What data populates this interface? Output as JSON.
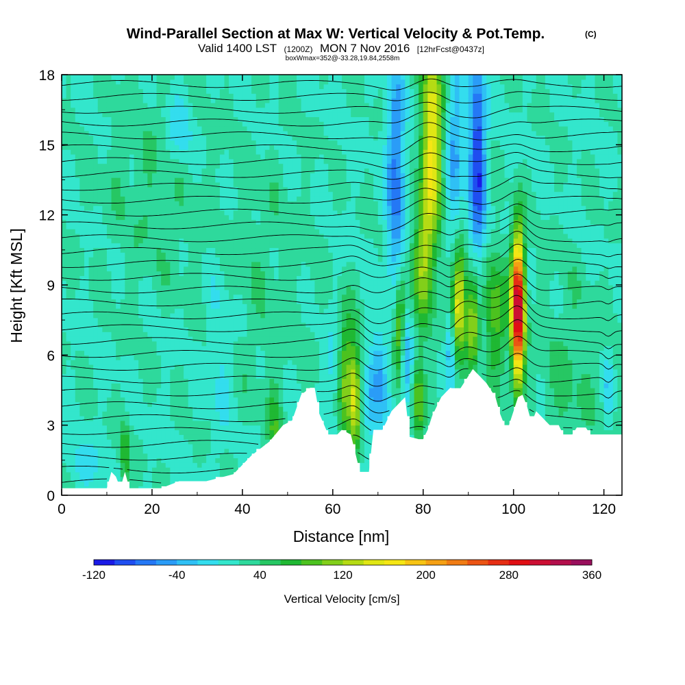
{
  "chart_data": {
    "type": "heatmap",
    "title": "Wind-Parallel Section at Max W: Vertical Velocity & Pot.Temp.",
    "title_mark": "(C)",
    "subtitle_main": "Valid 1400 LST",
    "subtitle_z": "(1200Z)",
    "subtitle_date": "MON 7 Nov 2016",
    "subtitle_fcst": "[12hrFcst@0437z]",
    "box_note": "boxWmax=352@-33.28,19.84,2558m",
    "xlabel": "Distance [nm]",
    "ylabel": "Height [Kft MSL]",
    "xlim": [
      0,
      124
    ],
    "ylim": [
      0,
      18
    ],
    "xticks": [
      0,
      20,
      40,
      60,
      80,
      100,
      120
    ],
    "yticks": [
      0,
      3,
      6,
      9,
      12,
      15,
      18
    ],
    "colorbar": {
      "label": "Vertical Velocity [cm/s]",
      "min": -120,
      "max": 360,
      "step": 20,
      "tick_values": [
        -120,
        -40,
        40,
        120,
        200,
        280,
        360
      ],
      "colors": [
        "#1a1ae6",
        "#1f4ef0",
        "#2478f5",
        "#2a9cf7",
        "#2fc0f5",
        "#33ddee",
        "#33e6cc",
        "#2ed99c",
        "#26c763",
        "#1fb833",
        "#4cc21f",
        "#82cf1a",
        "#b5db14",
        "#e0e614",
        "#f5e614",
        "#f7c414",
        "#f5a014",
        "#f07c14",
        "#eb5414",
        "#e62e14",
        "#e00f14",
        "#cc0f33",
        "#b30f4c",
        "#990f5c"
      ]
    },
    "terrain_profile": [
      [
        0,
        0.3
      ],
      [
        10,
        0.3
      ],
      [
        11,
        1.0
      ],
      [
        12,
        0.8
      ],
      [
        13,
        0.3
      ],
      [
        14,
        1.0
      ],
      [
        15,
        0.3
      ],
      [
        22,
        0.3
      ],
      [
        26,
        0.6
      ],
      [
        32,
        0.6
      ],
      [
        38,
        0.9
      ],
      [
        42,
        1.7
      ],
      [
        46,
        2.3
      ],
      [
        49,
        3.0
      ],
      [
        51,
        3.2
      ],
      [
        53,
        4.3
      ],
      [
        55,
        4.6
      ],
      [
        56,
        4.6
      ],
      [
        57,
        3.5
      ],
      [
        59,
        2.6
      ],
      [
        61,
        2.6
      ],
      [
        62,
        2.8
      ],
      [
        64,
        2.6
      ],
      [
        66,
        1.0
      ],
      [
        68,
        1.0
      ],
      [
        69,
        2.8
      ],
      [
        71,
        2.8
      ],
      [
        73,
        3.6
      ],
      [
        76,
        4.2
      ],
      [
        77,
        2.5
      ],
      [
        79,
        2.4
      ],
      [
        80,
        2.4
      ],
      [
        81,
        2.8
      ],
      [
        82,
        3.4
      ],
      [
        84,
        4.2
      ],
      [
        86,
        4.6
      ],
      [
        88,
        4.5
      ],
      [
        90,
        5.1
      ],
      [
        91,
        5.4
      ],
      [
        92,
        5.2
      ],
      [
        94,
        4.8
      ],
      [
        96,
        4.2
      ],
      [
        97,
        3.5
      ],
      [
        98,
        3.0
      ],
      [
        99,
        3.0
      ],
      [
        100,
        3.6
      ],
      [
        101,
        4.2
      ],
      [
        102,
        4.3
      ],
      [
        103,
        3.8
      ],
      [
        104,
        3.1
      ],
      [
        105,
        3.6
      ],
      [
        106,
        3.4
      ],
      [
        108,
        3.0
      ],
      [
        110,
        3.0
      ],
      [
        111,
        2.6
      ],
      [
        113,
        2.6
      ],
      [
        114,
        2.9
      ],
      [
        116,
        2.9
      ],
      [
        117,
        2.6
      ],
      [
        124,
        2.6
      ]
    ],
    "updrafts": [
      {
        "x": 14,
        "y": 1.8,
        "sx": 0.8,
        "sy": 1.0,
        "w": 60
      },
      {
        "x": 47,
        "y": 2.5,
        "sx": 1.0,
        "sy": 1.4,
        "w": 55
      },
      {
        "x": 63,
        "y": 5.0,
        "sx": 1.2,
        "sy": 2.0,
        "w": 90
      },
      {
        "x": 65,
        "y": 4.2,
        "sx": 0.8,
        "sy": 1.6,
        "w": 120
      },
      {
        "x": 75,
        "y": 7.2,
        "sx": 1.0,
        "sy": 1.6,
        "w": 130
      },
      {
        "x": 79,
        "y": 4.0,
        "sx": 0.9,
        "sy": 1.2,
        "w": 90
      },
      {
        "x": 82,
        "y": 15.5,
        "sx": 1.6,
        "sy": 3.2,
        "w": 150
      },
      {
        "x": 80,
        "y": 10.0,
        "sx": 1.6,
        "sy": 2.2,
        "w": 90
      },
      {
        "x": 88,
        "y": 8.4,
        "sx": 1.1,
        "sy": 1.6,
        "w": 150
      },
      {
        "x": 91,
        "y": 7.5,
        "sx": 0.9,
        "sy": 1.5,
        "w": 110
      },
      {
        "x": 96,
        "y": 7.8,
        "sx": 1.8,
        "sy": 1.8,
        "w": 80
      },
      {
        "x": 101,
        "y": 8.0,
        "sx": 1.0,
        "sy": 2.2,
        "w": 320
      },
      {
        "x": 112,
        "y": 5.0,
        "sx": 5,
        "sy": 3,
        "w": 25
      },
      {
        "x": 20,
        "y": 13,
        "sx": 8,
        "sy": 3,
        "w": 20
      },
      {
        "x": 45,
        "y": 9,
        "sx": 7,
        "sy": 4,
        "w": 15
      }
    ],
    "downdrafts": [
      {
        "x": 76,
        "y": 6.0,
        "sx": 1.0,
        "sy": 1.4,
        "w": -100
      },
      {
        "x": 74,
        "y": 13.5,
        "sx": 1.4,
        "sy": 3.5,
        "w": -90
      },
      {
        "x": 87,
        "y": 15.0,
        "sx": 1.3,
        "sy": 3.0,
        "w": -60
      },
      {
        "x": 92,
        "y": 14.5,
        "sx": 1.3,
        "sy": 3.2,
        "w": -120
      },
      {
        "x": 70,
        "y": 5.0,
        "sx": 1.3,
        "sy": 1.6,
        "w": -60
      },
      {
        "x": 68,
        "y": 4.0,
        "sx": 0.8,
        "sy": 1.2,
        "w": -40
      },
      {
        "x": 60,
        "y": 5.0,
        "sx": 1.2,
        "sy": 1.5,
        "w": -30
      },
      {
        "x": 86,
        "y": 6.5,
        "sx": 0.6,
        "sy": 1.0,
        "w": -60
      },
      {
        "x": 121,
        "y": 4.5,
        "sx": 0.4,
        "sy": 1.0,
        "w": -60
      },
      {
        "x": 26,
        "y": 15.5,
        "sx": 2,
        "sy": 1.2,
        "w": -40
      },
      {
        "x": 35,
        "y": 6.0,
        "sx": 2,
        "sy": 2.5,
        "w": -25
      },
      {
        "x": 5,
        "y": 1.2,
        "sx": 3,
        "sy": 0.8,
        "w": -25
      }
    ]
  }
}
